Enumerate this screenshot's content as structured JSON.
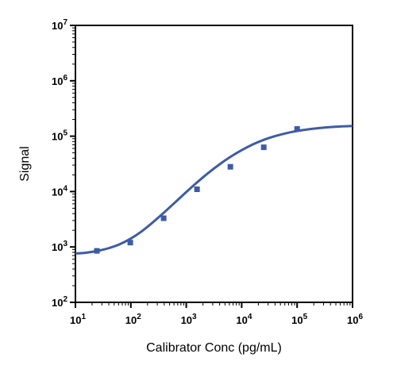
{
  "chart_data": {
    "type": "scatter",
    "title": "",
    "xlabel": "Calibrator Conc (pg/mL)",
    "ylabel": "Signal",
    "xscale": "log",
    "yscale": "log",
    "xlim": [
      10,
      1000000
    ],
    "ylim": [
      100,
      10000000
    ],
    "grid": false,
    "legend": "none",
    "x_ticks": [
      {
        "base": "10",
        "exp": "1",
        "value": 10
      },
      {
        "base": "10",
        "exp": "2",
        "value": 100
      },
      {
        "base": "10",
        "exp": "3",
        "value": 1000
      },
      {
        "base": "10",
        "exp": "4",
        "value": 10000
      },
      {
        "base": "10",
        "exp": "5",
        "value": 100000
      },
      {
        "base": "10",
        "exp": "6",
        "value": 1000000
      }
    ],
    "y_ticks": [
      {
        "base": "10",
        "exp": "2",
        "value": 100
      },
      {
        "base": "10",
        "exp": "3",
        "value": 1000
      },
      {
        "base": "10",
        "exp": "4",
        "value": 10000
      },
      {
        "base": "10",
        "exp": "5",
        "value": 100000
      },
      {
        "base": "10",
        "exp": "6",
        "value": 1000000
      },
      {
        "base": "10",
        "exp": "7",
        "value": 10000000
      }
    ],
    "series": [
      {
        "type": "scatter",
        "color": "#3e5ba8",
        "x": [
          24.4,
          97.7,
          391,
          1563,
          6250,
          25000,
          100000
        ],
        "y": [
          850,
          1200,
          3300,
          11000,
          28000,
          63000,
          135000
        ]
      },
      {
        "type": "line",
        "color": "#3e5ba8",
        "x": [
          10,
          15.85,
          25.1,
          39.8,
          63.1,
          100,
          158.5,
          251,
          398,
          631,
          1000,
          1585,
          2512,
          3981,
          6310,
          10000,
          15849,
          25119,
          39811,
          63096,
          100000,
          158489,
          251189,
          398107,
          630957,
          1000000
        ],
        "y": [
          760,
          790,
          850,
          950,
          1120,
          1420,
          1930,
          2800,
          4200,
          6400,
          9800,
          14800,
          21800,
          31000,
          42500,
          56000,
          71000,
          86000,
          100000,
          113000,
          124000,
          133000,
          140000,
          146000,
          150000,
          153000
        ]
      }
    ]
  }
}
